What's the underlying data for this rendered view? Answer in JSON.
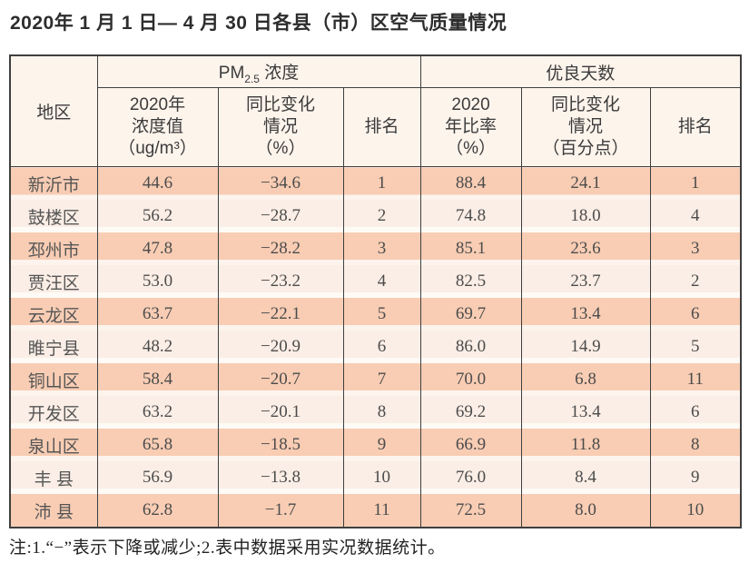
{
  "title": "2020年 1 月 1 日— 4 月 30 日各县（市）区空气质量情况",
  "table": {
    "region_header": "地区",
    "groups": [
      {
        "prefix": "PM",
        "sub": "2.5",
        "suffix": " 浓度"
      },
      {
        "label": "优良天数"
      }
    ],
    "columns": [
      {
        "lines": [
          "2020年",
          "浓度值",
          "（ug/m³）"
        ]
      },
      {
        "lines": [
          "同比变化",
          "情况",
          "（%）"
        ]
      },
      {
        "lines": [
          "排名"
        ]
      },
      {
        "lines": [
          "2020",
          "年比率",
          "（%）"
        ]
      },
      {
        "lines": [
          "同比变化",
          "情况",
          "（百分点）"
        ]
      },
      {
        "lines": [
          "排名"
        ]
      }
    ],
    "rows": [
      {
        "region": "新沂市",
        "pm_value": "44.6",
        "pm_change": "−34.6",
        "pm_rank": "1",
        "ratio": "88.4",
        "ratio_change": "24.1",
        "ratio_rank": "1"
      },
      {
        "region": "鼓楼区",
        "pm_value": "56.2",
        "pm_change": "−28.7",
        "pm_rank": "2",
        "ratio": "74.8",
        "ratio_change": "18.0",
        "ratio_rank": "4"
      },
      {
        "region": "邳州市",
        "pm_value": "47.8",
        "pm_change": "−28.2",
        "pm_rank": "3",
        "ratio": "85.1",
        "ratio_change": "23.6",
        "ratio_rank": "3"
      },
      {
        "region": "贾汪区",
        "pm_value": "53.0",
        "pm_change": "−23.2",
        "pm_rank": "4",
        "ratio": "82.5",
        "ratio_change": "23.7",
        "ratio_rank": "2"
      },
      {
        "region": "云龙区",
        "pm_value": "63.7",
        "pm_change": "−22.1",
        "pm_rank": "5",
        "ratio": "69.7",
        "ratio_change": "13.4",
        "ratio_rank": "6"
      },
      {
        "region": "睢宁县",
        "pm_value": "48.2",
        "pm_change": "−20.9",
        "pm_rank": "6",
        "ratio": "86.0",
        "ratio_change": "14.9",
        "ratio_rank": "5"
      },
      {
        "region": "铜山区",
        "pm_value": "58.4",
        "pm_change": "−20.7",
        "pm_rank": "7",
        "ratio": "70.0",
        "ratio_change": "6.8",
        "ratio_rank": "11"
      },
      {
        "region": "开发区",
        "pm_value": "63.2",
        "pm_change": "−20.1",
        "pm_rank": "8",
        "ratio": "69.2",
        "ratio_change": "13.4",
        "ratio_rank": "6"
      },
      {
        "region": "泉山区",
        "pm_value": "65.8",
        "pm_change": "−18.5",
        "pm_rank": "9",
        "ratio": "66.9",
        "ratio_change": "11.8",
        "ratio_rank": "8"
      },
      {
        "region": "丰 县",
        "pm_value": "56.9",
        "pm_change": "−13.8",
        "pm_rank": "10",
        "ratio": "76.0",
        "ratio_change": "8.4",
        "ratio_rank": "9"
      },
      {
        "region": "沛 县",
        "pm_value": "62.8",
        "pm_change": "−1.7",
        "pm_rank": "11",
        "ratio": "72.5",
        "ratio_change": "8.0",
        "ratio_rank": "10"
      }
    ]
  },
  "note": "注:1.“−”表示下降或减少;2.表中数据采用实况数据统计。"
}
